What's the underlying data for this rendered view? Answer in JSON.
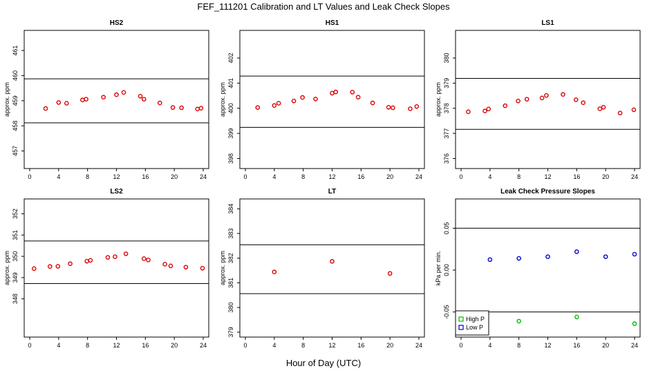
{
  "title": "FEF_111201  Calibration and LT Values and Leak Check Slopes",
  "x_title": "Hour of Day (UTC)",
  "colors": {
    "cal": "#dd0000",
    "high_p": "#00bb00",
    "low_p": "#0000cc",
    "line": "#000000"
  },
  "chart_data": [
    {
      "id": "hs2",
      "type": "scatter",
      "title": "HS2",
      "ylabel": "approx. ppm",
      "xlim": [
        0,
        24
      ],
      "ylim": [
        456.3,
        461.8
      ],
      "xticks": [
        "0",
        "4",
        "8",
        "12",
        "16",
        "20",
        "24"
      ],
      "yticks": [
        "457",
        "458",
        "459",
        "460",
        "461"
      ],
      "hlines": [
        459.87,
        458.12
      ],
      "series": [
        {
          "color": "cal",
          "x": [
            2.2,
            4.0,
            5.1,
            7.3,
            7.8,
            10.2,
            12.0,
            13.0,
            15.3,
            15.8,
            18.0,
            19.8,
            21.0,
            23.2,
            23.7
          ],
          "y": [
            458.69,
            458.93,
            458.9,
            459.03,
            459.06,
            459.14,
            459.24,
            459.33,
            459.18,
            459.06,
            458.91,
            458.73,
            458.72,
            458.67,
            458.7
          ]
        }
      ]
    },
    {
      "id": "hs1",
      "type": "scatter",
      "title": "HS1",
      "ylabel": "approx. ppm",
      "xlim": [
        0,
        24
      ],
      "ylim": [
        397.6,
        403.1
      ],
      "xticks": [
        "0",
        "4",
        "8",
        "12",
        "16",
        "20",
        "24"
      ],
      "yticks": [
        "398",
        "399",
        "400",
        "401",
        "402"
      ],
      "hlines": [
        401.28,
        399.24
      ],
      "series": [
        {
          "color": "cal",
          "x": [
            1.7,
            4.0,
            4.6,
            6.7,
            7.9,
            9.7,
            12.0,
            12.5,
            14.8,
            15.6,
            17.6,
            19.8,
            20.4,
            22.8,
            23.7
          ],
          "y": [
            400.03,
            400.11,
            400.2,
            400.29,
            400.43,
            400.37,
            400.6,
            400.65,
            400.64,
            400.44,
            400.21,
            400.04,
            400.02,
            399.98,
            400.07
          ]
        }
      ]
    },
    {
      "id": "ls1",
      "type": "scatter",
      "title": "LS1",
      "ylabel": "approx. ppm",
      "xlim": [
        0,
        24
      ],
      "ylim": [
        375.6,
        381.1
      ],
      "xticks": [
        "0",
        "4",
        "8",
        "12",
        "16",
        "20",
        "24"
      ],
      "yticks": [
        "376",
        "377",
        "378",
        "379",
        "380"
      ],
      "hlines": [
        379.19,
        377.16
      ],
      "series": [
        {
          "color": "cal",
          "x": [
            1.0,
            3.3,
            3.8,
            6.1,
            7.9,
            9.1,
            11.2,
            11.8,
            14.1,
            15.9,
            16.9,
            19.2,
            19.7,
            22.0,
            23.9
          ],
          "y": [
            377.86,
            377.89,
            377.97,
            378.1,
            378.29,
            378.36,
            378.41,
            378.51,
            378.55,
            378.34,
            378.22,
            377.98,
            378.04,
            377.81,
            377.94
          ]
        }
      ]
    },
    {
      "id": "ls2",
      "type": "scatter",
      "title": "LS2",
      "ylabel": "approx. ppm",
      "xlim": [
        0,
        24
      ],
      "ylim": [
        346.2,
        352.7
      ],
      "xticks": [
        "0",
        "4",
        "8",
        "12",
        "16",
        "20",
        "24"
      ],
      "yticks": [
        "348",
        "349",
        "350",
        "351",
        "352"
      ],
      "hlines": [
        350.72,
        348.72
      ],
      "series": [
        {
          "color": "cal",
          "x": [
            0.6,
            2.8,
            3.9,
            5.6,
            7.9,
            8.4,
            10.8,
            11.8,
            13.3,
            15.8,
            16.4,
            18.7,
            19.5,
            21.6,
            23.9
          ],
          "y": [
            349.42,
            349.52,
            349.53,
            349.65,
            349.77,
            349.81,
            349.95,
            349.98,
            350.12,
            349.89,
            349.83,
            349.63,
            349.55,
            349.49,
            349.44
          ]
        }
      ]
    },
    {
      "id": "lt",
      "type": "scatter",
      "title": "LT",
      "ylabel": "approx. ppm",
      "xlim": [
        0,
        24
      ],
      "ylim": [
        378.8,
        384.4
      ],
      "xticks": [
        "0",
        "4",
        "8",
        "12",
        "16",
        "20",
        "24"
      ],
      "yticks": [
        "379",
        "380",
        "381",
        "382",
        "383",
        "384"
      ],
      "hlines": [
        382.54,
        380.56
      ],
      "series": [
        {
          "color": "cal",
          "x": [
            4.0,
            12.0,
            20.0
          ],
          "y": [
            381.44,
            381.87,
            381.38
          ]
        }
      ]
    },
    {
      "id": "leak",
      "type": "scatter",
      "title": "Leak Check Pressure Slopes",
      "ylabel": "kPa per min.",
      "xlim": [
        0,
        24
      ],
      "ylim": [
        -0.08,
        0.085
      ],
      "xticks": [
        "0",
        "4",
        "8",
        "12",
        "16",
        "20",
        "24"
      ],
      "yticks": [
        "-0.05",
        "0.00",
        "0.05"
      ],
      "hlines": [
        0.05,
        -0.05
      ],
      "series": [
        {
          "name": "High P",
          "color": "high_p",
          "x": [
            8.0,
            16.0,
            24.0
          ],
          "y": [
            -0.061,
            -0.056,
            -0.064
          ]
        },
        {
          "name": "Low P",
          "color": "low_p",
          "x": [
            4.0,
            8.0,
            12.0,
            16.0,
            20.0,
            24.0
          ],
          "y": [
            0.0125,
            0.014,
            0.016,
            0.022,
            0.016,
            0.019
          ]
        }
      ],
      "legend": "bottom-left"
    }
  ]
}
